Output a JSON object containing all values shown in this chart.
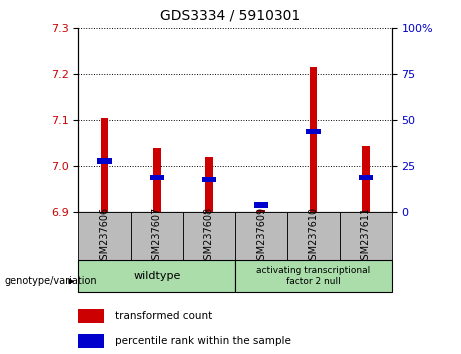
{
  "title": "GDS3334 / 5910301",
  "samples": [
    "GSM237606",
    "GSM237607",
    "GSM237608",
    "GSM237609",
    "GSM237610",
    "GSM237611"
  ],
  "transformed_counts": [
    7.105,
    7.04,
    7.02,
    6.905,
    7.215,
    7.045
  ],
  "percentile_ranks": [
    28,
    19,
    18,
    4,
    44,
    19
  ],
  "y_min": 6.9,
  "y_max": 7.3,
  "y_ticks": [
    6.9,
    7.0,
    7.1,
    7.2,
    7.3
  ],
  "right_y_ticks": [
    0,
    25,
    50,
    75,
    100
  ],
  "right_y_labels": [
    "0",
    "25",
    "50",
    "75",
    "100%"
  ],
  "bar_color": "#cc0000",
  "blue_color": "#0000cc",
  "wildtype_color": "#aaddaa",
  "atf2_color": "#aaddaa",
  "sample_bg_color": "#bbbbbb",
  "figsize": [
    4.61,
    3.54
  ],
  "dpi": 100
}
